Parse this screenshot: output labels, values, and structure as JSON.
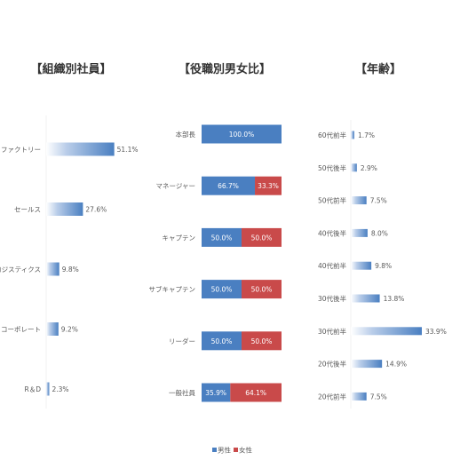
{
  "chart_data": [
    {
      "type": "bar",
      "orientation": "horizontal",
      "title": "【組織別社員】",
      "categories": [
        "ファクトリー",
        "セールス",
        "ロジスティクス",
        "コーポレート",
        "R＆D"
      ],
      "values": [
        51.1,
        27.6,
        9.8,
        9.2,
        2.3
      ],
      "value_labels": [
        "51.1%",
        "27.6%",
        "9.8%",
        "9.2%",
        "2.3%"
      ],
      "xlim": [
        0,
        100
      ],
      "grid": false
    },
    {
      "type": "bar",
      "orientation": "horizontal",
      "stacked": true,
      "title": "【役職別男女比】",
      "categories": [
        "本部長",
        "マネージャー",
        "キャプテン",
        "サブキャプテン",
        "リーダー",
        "一般社員"
      ],
      "series": [
        {
          "name": "男性",
          "color": "#4a7fc1",
          "values": [
            100.0,
            66.7,
            50.0,
            50.0,
            50.0,
            35.9
          ],
          "labels": [
            "100.0%",
            "66.7%",
            "50.0%",
            "50.0%",
            "50.0%",
            "35.9%"
          ]
        },
        {
          "name": "女性",
          "color": "#c94a4a",
          "values": [
            0,
            33.3,
            50.0,
            50.0,
            50.0,
            64.1
          ],
          "labels": [
            "",
            "33.3%",
            "50.0%",
            "50.0%",
            "50.0%",
            "64.1%"
          ]
        }
      ],
      "xlim": [
        0,
        100
      ],
      "legend": "bottom",
      "grid": false
    },
    {
      "type": "bar",
      "orientation": "horizontal",
      "title": "【年齢】",
      "categories": [
        "60代前半",
        "50代後半",
        "50代前半",
        "40代後半",
        "40代前半",
        "30代後半",
        "30代前半",
        "20代後半",
        "20代前半"
      ],
      "values": [
        1.7,
        2.9,
        7.5,
        8.0,
        9.8,
        13.8,
        33.9,
        14.9,
        7.5
      ],
      "value_labels": [
        "1.7%",
        "2.9%",
        "7.5%",
        "8.0%",
        "9.8%",
        "13.8%",
        "33.9%",
        "14.9%",
        "7.5%"
      ],
      "xlim": [
        0,
        100
      ],
      "grid": false
    }
  ]
}
